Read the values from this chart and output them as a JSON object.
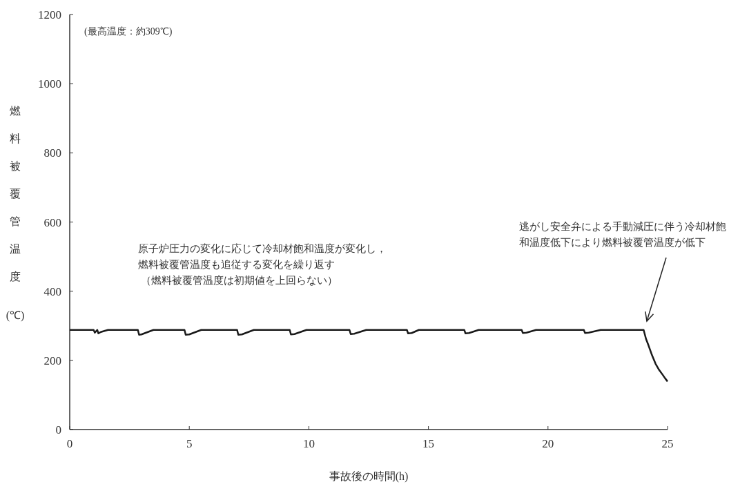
{
  "chart_data": {
    "type": "line",
    "xlabel": "事故後の時間(h)",
    "ylabel": "燃料被覆管温度(℃)",
    "xlim": [
      0,
      25
    ],
    "ylim": [
      0,
      1200
    ],
    "xticks": [
      0,
      5,
      10,
      15,
      20,
      25
    ],
    "yticks": [
      0,
      200,
      400,
      600,
      800,
      1000,
      1200
    ],
    "grid": false,
    "marker": "none",
    "line_style": "solid",
    "series": [
      {
        "color": "#1a1a1a",
        "x": [
          0,
          1.0,
          1.05,
          1.15,
          1.2,
          1.25,
          1.3,
          1.6,
          2.85,
          2.9,
          3.0,
          3.5,
          4.8,
          4.85,
          5.0,
          5.5,
          7.0,
          7.05,
          7.2,
          7.7,
          9.2,
          9.25,
          9.4,
          9.9,
          11.7,
          11.75,
          11.9,
          12.4,
          14.1,
          14.15,
          14.3,
          14.6,
          16.5,
          16.55,
          16.7,
          17.1,
          18.9,
          18.95,
          19.1,
          19.5,
          21.5,
          21.55,
          21.7,
          22.2,
          24.0,
          24.1,
          24.2,
          24.35,
          24.5,
          24.65,
          24.8,
          24.9,
          25
        ],
        "values": [
          288,
          288,
          280,
          288,
          278,
          280,
          282,
          288,
          288,
          274,
          275,
          288,
          288,
          274,
          275,
          288,
          288,
          274,
          275,
          288,
          288,
          275,
          276,
          288,
          288,
          276,
          277,
          288,
          288,
          278,
          279,
          288,
          288,
          278,
          279,
          288,
          288,
          279,
          280,
          288,
          288,
          279,
          280,
          288,
          288,
          262,
          244,
          215,
          190,
          172,
          158,
          148,
          139
        ]
      }
    ],
    "annotations": [
      "(最高温度：約309℃)",
      "原子炉圧力の変化に応じて冷却材飽和温度が変化し，燃料被覆管温度も追従する変化を繰り返す",
      "（燃料被覆管温度は初期値を上回らない）",
      "逃がし安全弁による手動減圧に伴う冷却材飽和温度低下により燃料被覆管温度が低下"
    ]
  }
}
